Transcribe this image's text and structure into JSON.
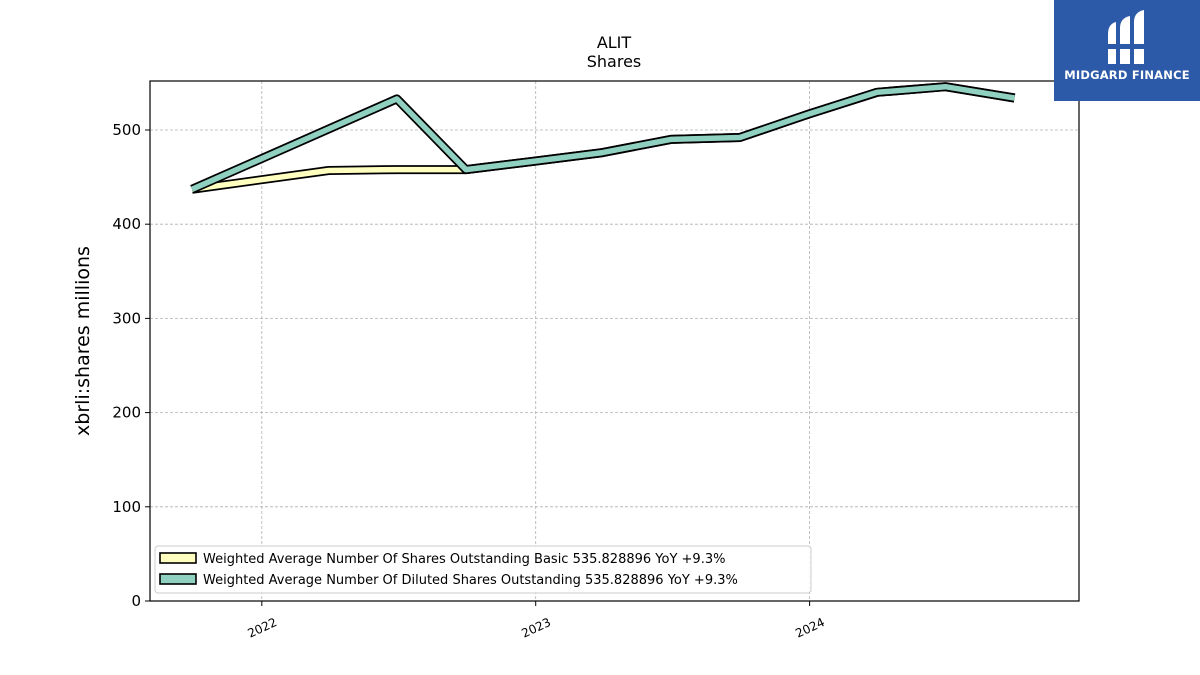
{
  "chart_data": {
    "type": "line",
    "title": "ALIT",
    "subtitle": "Shares",
    "ylabel": "xbrli:shares millions",
    "xlabel": "",
    "ylim": [
      0,
      552
    ],
    "xlim": [
      "2021-08-05",
      "2024-12-25"
    ],
    "yticks": [
      0,
      100,
      200,
      300,
      400,
      500
    ],
    "xticks": [
      {
        "date": "2022-01-01",
        "label": "2022"
      },
      {
        "date": "2023-01-01",
        "label": "2023"
      },
      {
        "date": "2024-01-01",
        "label": "2024"
      }
    ],
    "grid": true,
    "legend_position": "lower-left",
    "series": [
      {
        "name": "Weighted Average Number Of Shares Outstanding Basic  535.828896 YoY +9.3%",
        "color": "#ffffc0",
        "x": [
          "2021-09-30",
          "2022-03-31",
          "2022-06-30",
          "2022-09-30",
          "2022-12-31",
          "2023-03-31",
          "2023-06-30",
          "2023-09-30",
          "2023-12-31",
          "2024-03-31",
          "2024-06-30",
          "2024-09-30"
        ],
        "values": [
          437,
          457,
          458,
          458,
          467,
          476,
          490,
          492,
          517,
          540,
          546,
          534
        ]
      },
      {
        "name": "Weighted Average Number Of Diluted Shares Outstanding  535.828896 YoY +9.3%",
        "color": "#8fd0c0",
        "x": [
          "2021-09-30",
          "2022-06-30",
          "2022-09-30",
          "2022-12-31",
          "2023-03-31",
          "2023-06-30",
          "2023-09-30",
          "2023-12-31",
          "2024-03-31",
          "2024-06-30",
          "2024-09-30"
        ],
        "values": [
          437,
          533,
          458,
          467,
          476,
          490,
          492,
          517,
          540,
          546,
          534
        ]
      }
    ]
  },
  "logo": {
    "text": "MIDGARD FINANCE",
    "color": "#2d5aa8"
  }
}
